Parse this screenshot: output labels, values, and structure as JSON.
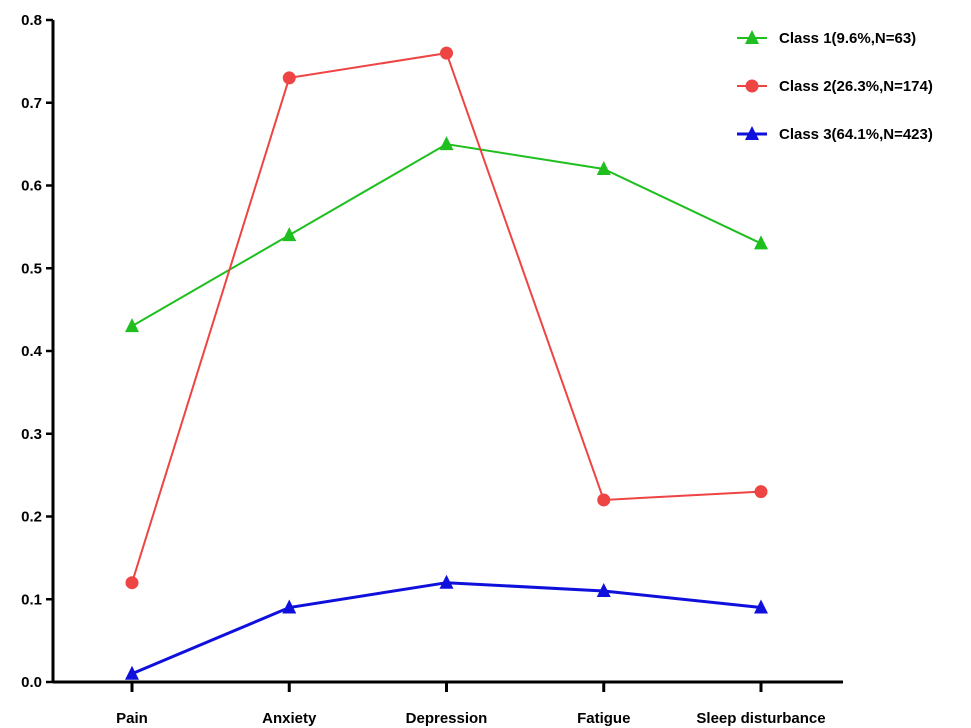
{
  "chart_data": {
    "type": "line",
    "title": "",
    "xlabel": "",
    "ylabel": "",
    "categories": [
      "Pain",
      "Anxiety",
      "Depression",
      "Fatigue",
      "Sleep disturbance"
    ],
    "ylim": [
      0,
      0.8
    ],
    "yticks": [
      "0.0",
      "0.1",
      "0.2",
      "0.3",
      "0.4",
      "0.5",
      "0.6",
      "0.7",
      "0.8"
    ],
    "grid": false,
    "legend_position": "top-right",
    "series": [
      {
        "name": "Class 1(9.6%,N=63)",
        "values": [
          0.43,
          0.54,
          0.65,
          0.62,
          0.53
        ],
        "color": "#1fbf1f",
        "marker": "triangle"
      },
      {
        "name": "Class 2(26.3%,N=174)",
        "values": [
          0.12,
          0.73,
          0.76,
          0.22,
          0.23
        ],
        "color": "#ee4444",
        "marker": "circle"
      },
      {
        "name": "Class 3(64.1%,N=423)",
        "values": [
          0.01,
          0.09,
          0.12,
          0.11,
          0.09
        ],
        "color": "#1010dd",
        "marker": "triangle"
      }
    ]
  }
}
